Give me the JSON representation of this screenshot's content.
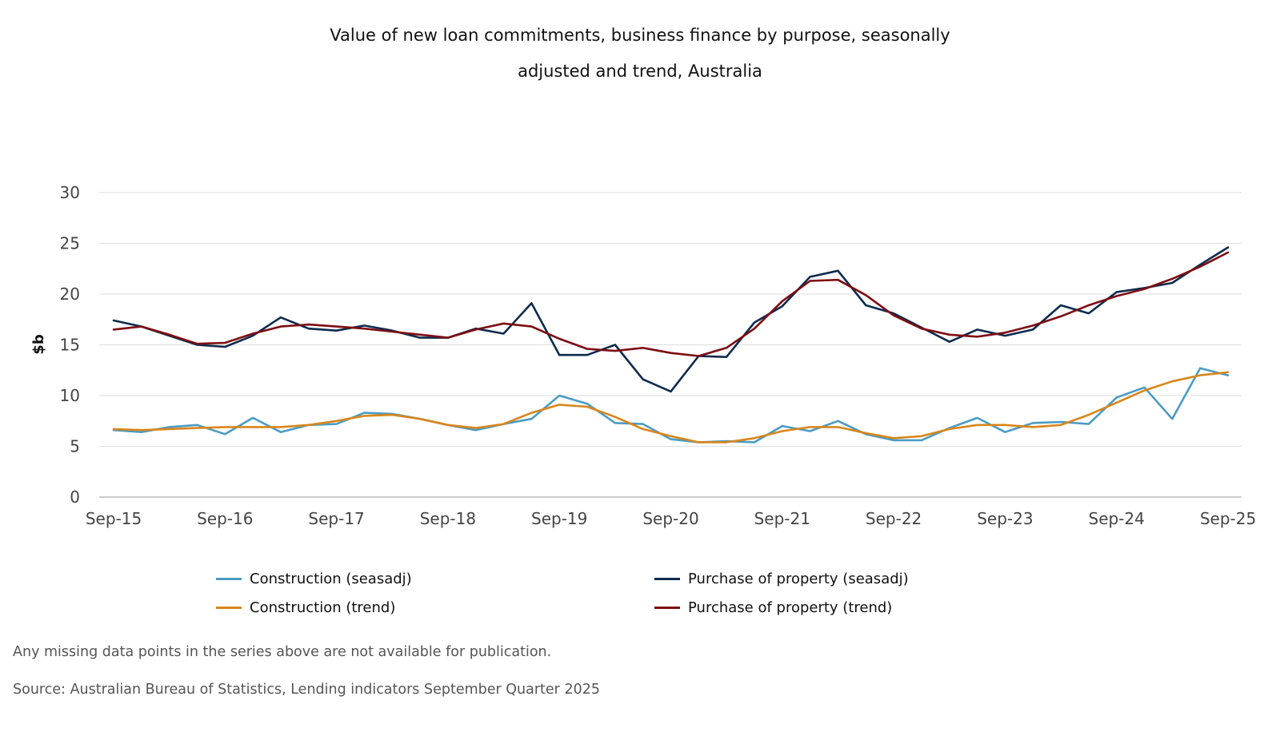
{
  "title_lines": [
    "Value of new loan commitments, business finance by purpose, seasonally",
    "adjusted and trend, Australia"
  ],
  "footnote": "Any missing data points in the series above are not available for publication.",
  "source": "Source: Australian Bureau of Statistics, Lending indicators September Quarter 2025",
  "chart_data": {
    "type": "line",
    "title": "Value of new loan commitments, business finance by purpose, seasonally adjusted and trend, Australia",
    "xlabel": "",
    "ylabel": "$b",
    "ylim": [
      0,
      30
    ],
    "yticks": [
      0,
      5,
      10,
      15,
      20,
      25,
      30
    ],
    "grid": true,
    "legend_position": "bottom",
    "x_tick_labels": [
      "Sep-15",
      "Sep-16",
      "Sep-17",
      "Sep-18",
      "Sep-19",
      "Sep-20",
      "Sep-21",
      "Sep-22",
      "Sep-23",
      "Sep-24",
      "Sep-25"
    ],
    "x_tick_indices": [
      0,
      4,
      8,
      12,
      16,
      20,
      24,
      28,
      32,
      36,
      40
    ],
    "x": [
      "Sep-15",
      "Dec-15",
      "Mar-16",
      "Jun-16",
      "Sep-16",
      "Dec-16",
      "Mar-17",
      "Jun-17",
      "Sep-17",
      "Dec-17",
      "Mar-18",
      "Jun-18",
      "Sep-18",
      "Dec-18",
      "Mar-19",
      "Jun-19",
      "Sep-19",
      "Dec-19",
      "Mar-20",
      "Jun-20",
      "Sep-20",
      "Dec-20",
      "Mar-21",
      "Jun-21",
      "Sep-21",
      "Dec-21",
      "Mar-22",
      "Jun-22",
      "Sep-22",
      "Dec-22",
      "Mar-23",
      "Jun-23",
      "Sep-23",
      "Dec-23",
      "Mar-24",
      "Jun-24",
      "Sep-24",
      "Dec-24",
      "Mar-25",
      "Jun-25",
      "Sep-25"
    ],
    "series": [
      {
        "name": "Construction (seasadj)",
        "color": "#4a9cc3",
        "values": [
          6.6,
          6.4,
          6.9,
          7.1,
          6.2,
          7.8,
          6.4,
          7.1,
          7.2,
          8.3,
          8.2,
          7.7,
          7.1,
          6.6,
          7.2,
          7.7,
          10.0,
          9.2,
          7.3,
          7.2,
          5.7,
          5.4,
          5.5,
          5.4,
          7.0,
          6.5,
          7.5,
          6.2,
          5.6,
          5.6,
          6.8,
          7.8,
          6.4,
          7.3,
          7.4,
          7.2,
          9.8,
          10.8,
          7.7,
          12.7,
          12.0
        ]
      },
      {
        "name": "Purchase of property (seasadj)",
        "color": "#0d2b4e",
        "values": [
          17.4,
          16.8,
          15.9,
          15.0,
          14.8,
          15.9,
          17.7,
          16.6,
          16.4,
          16.9,
          16.4,
          15.7,
          15.7,
          16.6,
          16.1,
          19.1,
          14.0,
          14.0,
          15.0,
          11.6,
          10.4,
          13.9,
          13.8,
          17.2,
          18.8,
          21.7,
          22.3,
          18.9,
          18.1,
          16.7,
          15.3,
          16.5,
          15.9,
          16.5,
          18.9,
          18.1,
          20.2,
          20.6,
          21.1,
          22.9,
          24.6
        ]
      },
      {
        "name": "Construction (trend)",
        "color": "#d9861a",
        "values": [
          6.7,
          6.6,
          6.7,
          6.8,
          6.9,
          6.9,
          6.9,
          7.1,
          7.5,
          8.0,
          8.1,
          7.7,
          7.1,
          6.8,
          7.2,
          8.3,
          9.1,
          8.9,
          7.9,
          6.7,
          6.0,
          5.4,
          5.4,
          5.8,
          6.5,
          6.9,
          6.9,
          6.3,
          5.8,
          6.0,
          6.7,
          7.1,
          7.1,
          6.9,
          7.1,
          8.1,
          9.3,
          10.5,
          11.4,
          12.0,
          12.3
        ]
      },
      {
        "name": "Purchase of property (trend)",
        "color": "#7d0d12",
        "values": [
          16.5,
          16.8,
          16.0,
          15.1,
          15.2,
          16.1,
          16.8,
          17.0,
          16.8,
          16.6,
          16.3,
          16.0,
          15.7,
          16.5,
          17.1,
          16.8,
          15.6,
          14.6,
          14.4,
          14.7,
          14.2,
          13.9,
          14.7,
          16.6,
          19.3,
          21.3,
          21.4,
          19.9,
          17.9,
          16.6,
          16.0,
          15.8,
          16.2,
          16.9,
          17.8,
          18.9,
          19.8,
          20.5,
          21.5,
          22.7,
          24.1
        ]
      }
    ]
  }
}
